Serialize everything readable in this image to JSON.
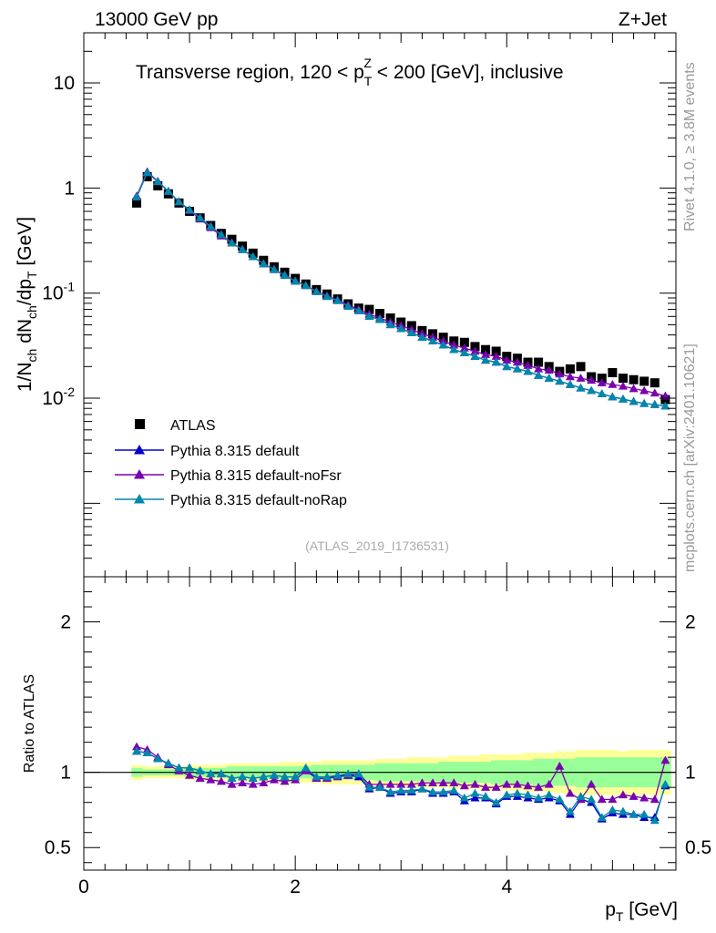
{
  "header": {
    "left": "13000 GeV pp",
    "right": "Z+Jet",
    "region_pre": "Transverse region, 120 < p",
    "region_sub": "T",
    "region_sup": "Z",
    "region_post": " < 200 [GeV], inclusive",
    "analysis_id": "(ATLAS_2019_I1736531)"
  },
  "side": {
    "rivet": "Rivet 4.1.0, ≥ 3.8M events",
    "mcplots": "mcplots.cern.ch [arXiv:2401.10621]"
  },
  "colors": {
    "atlas": "#000000",
    "default": "#0000cc",
    "noFsr": "#7a00b0",
    "noRap": "#0088aa",
    "band_inner": "#99ff99",
    "band_outer": "#ffff99"
  },
  "chart_data": [
    {
      "type": "scatter",
      "yscale": "log",
      "ylabel": "1/N_ch dN_ch/dp_T [GeV]",
      "xlim": [
        0,
        5.6
      ],
      "ylim": [
        0.0002,
        30
      ],
      "yticks": [
        {
          "value": 10,
          "label": "10"
        },
        {
          "value": 1,
          "label": "1"
        },
        {
          "value": 0.1,
          "label": "10^-1"
        },
        {
          "value": 0.01,
          "label": "10^-2"
        }
      ],
      "legend": {
        "position": "bottom-left",
        "entries": [
          "ATLAS",
          "Pythia 8.315 default",
          "Pythia 8.315 default-noFsr",
          "Pythia 8.315 default-noRap"
        ]
      },
      "x": [
        0.5,
        0.6,
        0.7,
        0.8,
        0.9,
        1.0,
        1.1,
        1.2,
        1.3,
        1.4,
        1.5,
        1.6,
        1.7,
        1.8,
        1.9,
        2.0,
        2.1,
        2.2,
        2.3,
        2.4,
        2.5,
        2.6,
        2.7,
        2.8,
        2.9,
        3.0,
        3.1,
        3.2,
        3.3,
        3.4,
        3.5,
        3.6,
        3.7,
        3.8,
        3.9,
        4.0,
        4.1,
        4.2,
        4.3,
        4.4,
        4.5,
        4.6,
        4.7,
        4.8,
        4.9,
        5.0,
        5.1,
        5.2,
        5.3,
        5.4,
        5.5
      ],
      "series": [
        {
          "name": "ATLAS",
          "marker": "square",
          "values": [
            0.72,
            1.28,
            1.05,
            0.88,
            0.72,
            0.6,
            0.52,
            0.44,
            0.37,
            0.325,
            0.28,
            0.24,
            0.205,
            0.178,
            0.158,
            0.138,
            0.122,
            0.108,
            0.098,
            0.088,
            0.079,
            0.072,
            0.07,
            0.064,
            0.058,
            0.053,
            0.049,
            0.044,
            0.041,
            0.038,
            0.035,
            0.034,
            0.031,
            0.029,
            0.028,
            0.025,
            0.024,
            0.022,
            0.022,
            0.02,
            0.018,
            0.019,
            0.02,
            0.016,
            0.0155,
            0.0175,
            0.0155,
            0.015,
            0.0145,
            0.014,
            0.0097
          ]
        },
        {
          "name": "Pythia 8.315 default",
          "marker": "triangle",
          "values": [
            0.82,
            1.4,
            1.15,
            0.93,
            0.74,
            0.62,
            0.52,
            0.43,
            0.36,
            0.3,
            0.26,
            0.222,
            0.19,
            0.168,
            0.148,
            0.13,
            0.118,
            0.103,
            0.093,
            0.085,
            0.075,
            0.068,
            0.06,
            0.056,
            0.05,
            0.046,
            0.042,
            0.038,
            0.035,
            0.032,
            0.029,
            0.027,
            0.025,
            0.023,
            0.022,
            0.02,
            0.019,
            0.018,
            0.0165,
            0.0155,
            0.0145,
            0.0135,
            0.0125,
            0.0118,
            0.011,
            0.0103,
            0.0098,
            0.0093,
            0.0089,
            0.0087,
            0.0084
          ]
        },
        {
          "name": "Pythia 8.315 default-noFsr",
          "marker": "triangle",
          "values": [
            0.84,
            1.43,
            1.16,
            0.93,
            0.74,
            0.61,
            0.51,
            0.42,
            0.35,
            0.3,
            0.26,
            0.222,
            0.19,
            0.167,
            0.148,
            0.13,
            0.118,
            0.104,
            0.094,
            0.086,
            0.077,
            0.07,
            0.063,
            0.058,
            0.053,
            0.049,
            0.045,
            0.041,
            0.038,
            0.035,
            0.032,
            0.03,
            0.028,
            0.026,
            0.025,
            0.023,
            0.022,
            0.0205,
            0.019,
            0.0185,
            0.017,
            0.016,
            0.0155,
            0.0148,
            0.014,
            0.0135,
            0.013,
            0.0123,
            0.0118,
            0.0112,
            0.0105
          ]
        },
        {
          "name": "Pythia 8.315 default-noRap",
          "marker": "triangle",
          "values": [
            0.82,
            1.4,
            1.15,
            0.93,
            0.74,
            0.62,
            0.52,
            0.43,
            0.36,
            0.3,
            0.26,
            0.222,
            0.19,
            0.168,
            0.148,
            0.13,
            0.118,
            0.103,
            0.093,
            0.085,
            0.075,
            0.068,
            0.06,
            0.056,
            0.05,
            0.046,
            0.042,
            0.038,
            0.035,
            0.032,
            0.029,
            0.027,
            0.025,
            0.023,
            0.022,
            0.02,
            0.019,
            0.018,
            0.0165,
            0.0155,
            0.0145,
            0.0135,
            0.0125,
            0.0118,
            0.011,
            0.0103,
            0.0098,
            0.0093,
            0.0089,
            0.0087,
            0.0084
          ]
        }
      ]
    },
    {
      "type": "line",
      "ylabel": "Ratio to ATLAS",
      "xlabel_main": "p",
      "xlabel_sub": "T",
      "xlabel_unit": " [GeV]",
      "xlim": [
        0,
        5.6
      ],
      "ylim": [
        0.35,
        2.3
      ],
      "xticks": [
        {
          "value": 0,
          "label": "0"
        },
        {
          "value": 2,
          "label": "2"
        },
        {
          "value": 4,
          "label": "4"
        }
      ],
      "yticks": [
        {
          "value": 0.5,
          "label": "0.5"
        },
        {
          "value": 1,
          "label": "1"
        },
        {
          "value": 2,
          "label": "2"
        }
      ],
      "reference_line": 1,
      "bands": {
        "inner": {
          "lower": [
            0.97,
            0.98,
            0.98,
            0.98,
            0.98,
            0.97,
            0.97,
            0.97,
            0.97,
            0.96,
            0.96,
            0.96,
            0.96,
            0.96,
            0.96,
            0.96,
            0.96,
            0.95,
            0.95,
            0.95,
            0.95,
            0.95,
            0.95,
            0.94,
            0.94,
            0.94,
            0.94,
            0.94,
            0.94,
            0.93,
            0.93,
            0.93,
            0.93,
            0.93,
            0.92,
            0.92,
            0.92,
            0.92,
            0.91,
            0.91,
            0.91,
            0.91,
            0.9,
            0.9,
            0.9,
            0.9,
            0.9,
            0.9,
            0.9,
            0.9,
            0.9
          ],
          "upper": [
            1.03,
            1.02,
            1.02,
            1.02,
            1.02,
            1.03,
            1.03,
            1.03,
            1.03,
            1.04,
            1.04,
            1.04,
            1.04,
            1.04,
            1.04,
            1.04,
            1.04,
            1.05,
            1.05,
            1.05,
            1.05,
            1.05,
            1.05,
            1.06,
            1.06,
            1.06,
            1.06,
            1.06,
            1.06,
            1.07,
            1.07,
            1.07,
            1.07,
            1.07,
            1.08,
            1.08,
            1.08,
            1.08,
            1.09,
            1.09,
            1.09,
            1.09,
            1.1,
            1.1,
            1.1,
            1.1,
            1.1,
            1.1,
            1.1,
            1.1,
            1.1
          ]
        },
        "outer": {
          "lower": [
            0.95,
            0.96,
            0.96,
            0.96,
            0.96,
            0.95,
            0.95,
            0.95,
            0.95,
            0.94,
            0.94,
            0.94,
            0.94,
            0.94,
            0.93,
            0.93,
            0.93,
            0.93,
            0.92,
            0.92,
            0.92,
            0.92,
            0.92,
            0.91,
            0.91,
            0.91,
            0.9,
            0.9,
            0.9,
            0.9,
            0.89,
            0.89,
            0.89,
            0.88,
            0.88,
            0.88,
            0.88,
            0.87,
            0.87,
            0.87,
            0.86,
            0.86,
            0.85,
            0.85,
            0.85,
            0.85,
            0.85,
            0.85,
            0.85,
            0.85,
            0.85
          ],
          "upper": [
            1.05,
            1.04,
            1.04,
            1.04,
            1.04,
            1.05,
            1.05,
            1.05,
            1.05,
            1.06,
            1.06,
            1.06,
            1.06,
            1.06,
            1.07,
            1.07,
            1.07,
            1.07,
            1.08,
            1.08,
            1.08,
            1.08,
            1.08,
            1.09,
            1.09,
            1.09,
            1.1,
            1.1,
            1.1,
            1.1,
            1.11,
            1.11,
            1.11,
            1.12,
            1.12,
            1.12,
            1.12,
            1.13,
            1.13,
            1.13,
            1.14,
            1.14,
            1.15,
            1.15,
            1.15,
            1.15,
            1.14,
            1.15,
            1.15,
            1.15,
            1.15
          ]
        }
      },
      "x": [
        0.5,
        0.6,
        0.7,
        0.8,
        0.9,
        1.0,
        1.1,
        1.2,
        1.3,
        1.4,
        1.5,
        1.6,
        1.7,
        1.8,
        1.9,
        2.0,
        2.1,
        2.2,
        2.3,
        2.4,
        2.5,
        2.6,
        2.7,
        2.8,
        2.9,
        3.0,
        3.1,
        3.2,
        3.3,
        3.4,
        3.5,
        3.6,
        3.7,
        3.8,
        3.9,
        4.0,
        4.1,
        4.2,
        4.3,
        4.4,
        4.5,
        4.6,
        4.7,
        4.8,
        4.9,
        5.0,
        5.1,
        5.2,
        5.3,
        5.4,
        5.5
      ],
      "series": [
        {
          "name": "Pythia 8.315 default",
          "values": [
            1.14,
            1.13,
            1.09,
            1.06,
            1.03,
            1.03,
            1.01,
            0.99,
            0.99,
            0.96,
            0.97,
            0.96,
            0.97,
            0.98,
            0.97,
            0.97,
            1.02,
            0.96,
            0.96,
            0.98,
            0.98,
            0.97,
            0.89,
            0.9,
            0.86,
            0.87,
            0.87,
            0.89,
            0.86,
            0.86,
            0.87,
            0.81,
            0.83,
            0.83,
            0.79,
            0.84,
            0.84,
            0.83,
            0.82,
            0.83,
            0.81,
            0.72,
            0.82,
            0.8,
            0.69,
            0.73,
            0.72,
            0.72,
            0.7,
            0.7,
            0.91
          ]
        },
        {
          "name": "Pythia 8.315 default-noFsr",
          "values": [
            1.17,
            1.15,
            1.1,
            1.05,
            1.01,
            0.98,
            0.96,
            0.95,
            0.94,
            0.92,
            0.93,
            0.92,
            0.93,
            0.95,
            0.94,
            0.95,
            1.01,
            0.96,
            0.96,
            0.97,
            0.98,
            0.99,
            0.92,
            0.92,
            0.92,
            0.92,
            0.92,
            0.93,
            0.93,
            0.93,
            0.93,
            0.91,
            0.92,
            0.9,
            0.9,
            0.92,
            0.92,
            0.91,
            0.9,
            0.92,
            1.04,
            0.86,
            0.82,
            0.92,
            0.82,
            0.82,
            0.85,
            0.84,
            0.83,
            0.82,
            1.08
          ]
        },
        {
          "name": "Pythia 8.315 default-noRap",
          "values": [
            1.14,
            1.13,
            1.09,
            1.06,
            1.03,
            1.03,
            1.01,
            0.99,
            0.99,
            0.96,
            0.97,
            0.96,
            0.97,
            0.98,
            0.97,
            0.97,
            1.03,
            0.97,
            0.97,
            0.98,
            0.99,
            0.99,
            0.9,
            0.9,
            0.87,
            0.88,
            0.88,
            0.89,
            0.87,
            0.87,
            0.88,
            0.83,
            0.86,
            0.84,
            0.8,
            0.85,
            0.86,
            0.85,
            0.83,
            0.85,
            0.82,
            0.74,
            0.84,
            0.82,
            0.7,
            0.75,
            0.74,
            0.72,
            0.72,
            0.68,
            0.92
          ]
        }
      ]
    }
  ]
}
